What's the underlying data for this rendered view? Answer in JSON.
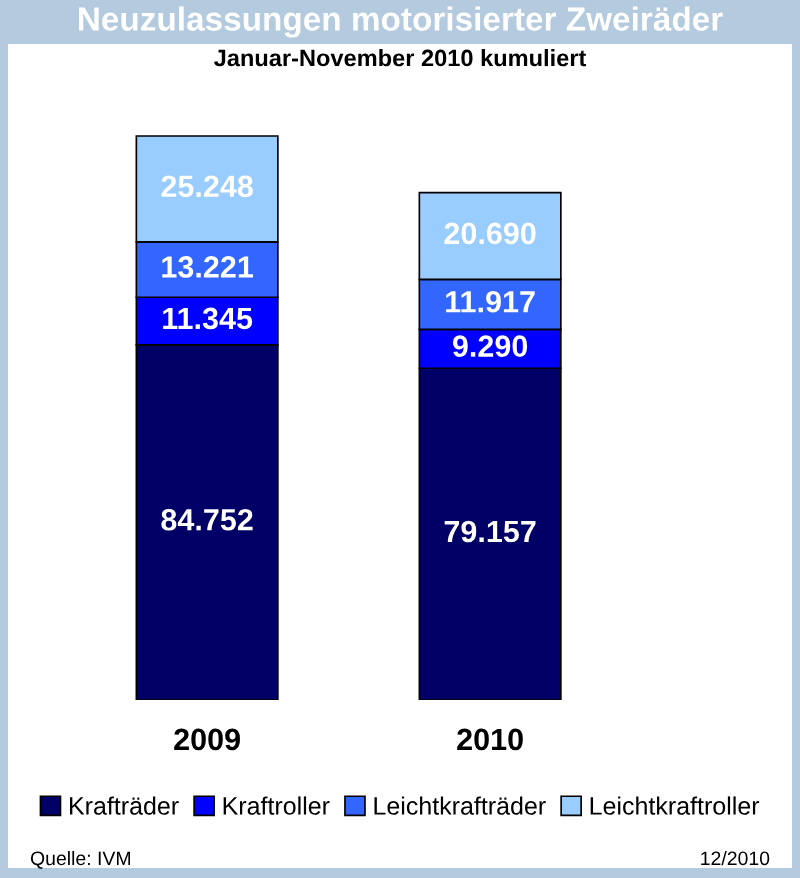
{
  "chart_data": {
    "type": "bar",
    "title": "Neuzulassungen motorisierter Zweiräder",
    "subtitle": "Januar-November 2010 kumuliert",
    "categories": [
      "2009",
      "2010"
    ],
    "stacked": true,
    "tick_labels": "x",
    "legend": "bottom",
    "series": [
      {
        "name": "Krafträder",
        "color": "#000066",
        "values": [
          84752,
          79157
        ],
        "value_labels": [
          "84.752",
          "79.157"
        ]
      },
      {
        "name": "Kraftroller",
        "color": "#0000ff",
        "values": [
          11345,
          9290
        ],
        "value_labels": [
          "11.345",
          "9.290"
        ]
      },
      {
        "name": "Leichtkrafträder",
        "color": "#3366ff",
        "values": [
          13221,
          11917
        ],
        "value_labels": [
          "13.221",
          "11.917"
        ]
      },
      {
        "name": "Leichtkraftroller",
        "color": "#99ccff",
        "values": [
          25248,
          20690
        ],
        "value_labels": [
          "25.248",
          "20.690"
        ]
      }
    ],
    "annotations": [
      "Quelle: IVM",
      "12/2010"
    ]
  }
}
